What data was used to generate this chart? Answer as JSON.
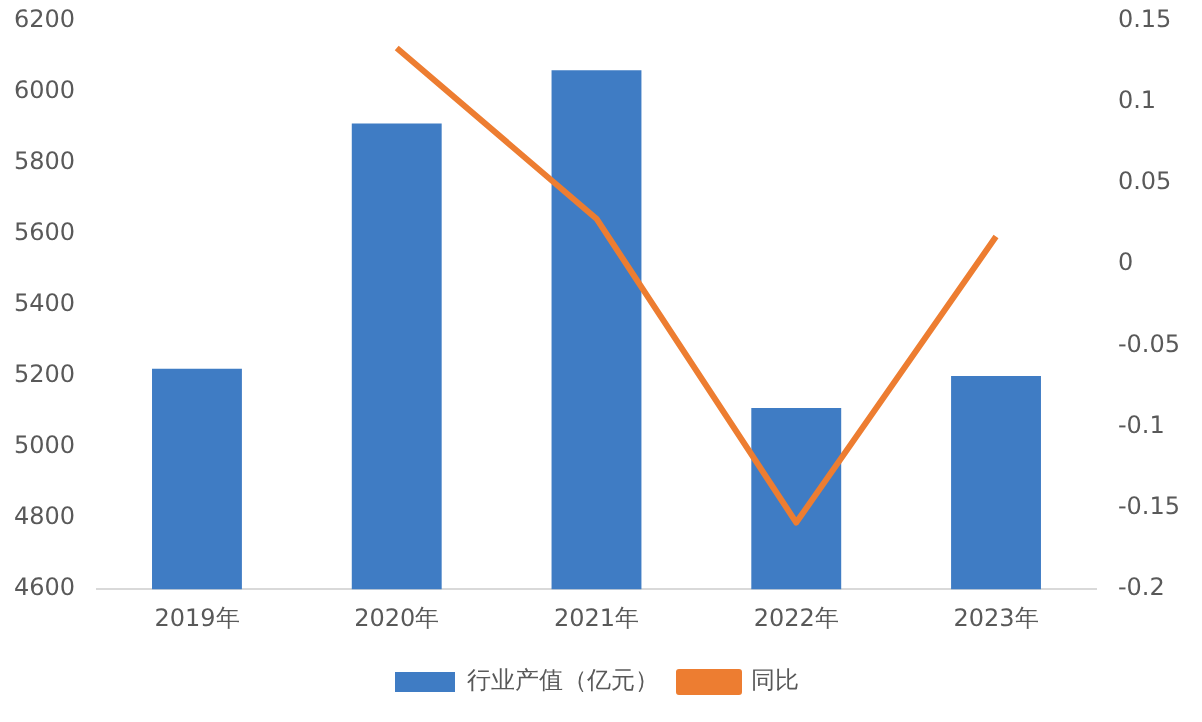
{
  "chart_data": {
    "type": "bar",
    "categories": [
      "2019年",
      "2020年",
      "2021年",
      "2022年",
      "2023年"
    ],
    "series": [
      {
        "name": "行业产值（亿元）",
        "color": "#3f7cc4",
        "values": [
          5220,
          5910,
          6060,
          5110,
          5200
        ]
      },
      {
        "name": "同比",
        "type": "line",
        "axis": "y2",
        "color": "#ed7d31",
        "values": [
          null,
          0.133,
          0.028,
          -0.159,
          0.017
        ]
      }
    ],
    "ylim": [
      4600,
      6200
    ],
    "yticks": [
      4600,
      4800,
      5000,
      5200,
      5400,
      5600,
      5800,
      6000,
      6200
    ],
    "y2lim": [
      -0.2,
      0.15
    ],
    "y2ticks": [
      -0.2,
      -0.15,
      -0.1,
      -0.05,
      0,
      0.05,
      0.1,
      0.15
    ],
    "grid": false,
    "legend": "bottom",
    "marker": "none",
    "line_style": "solid"
  }
}
